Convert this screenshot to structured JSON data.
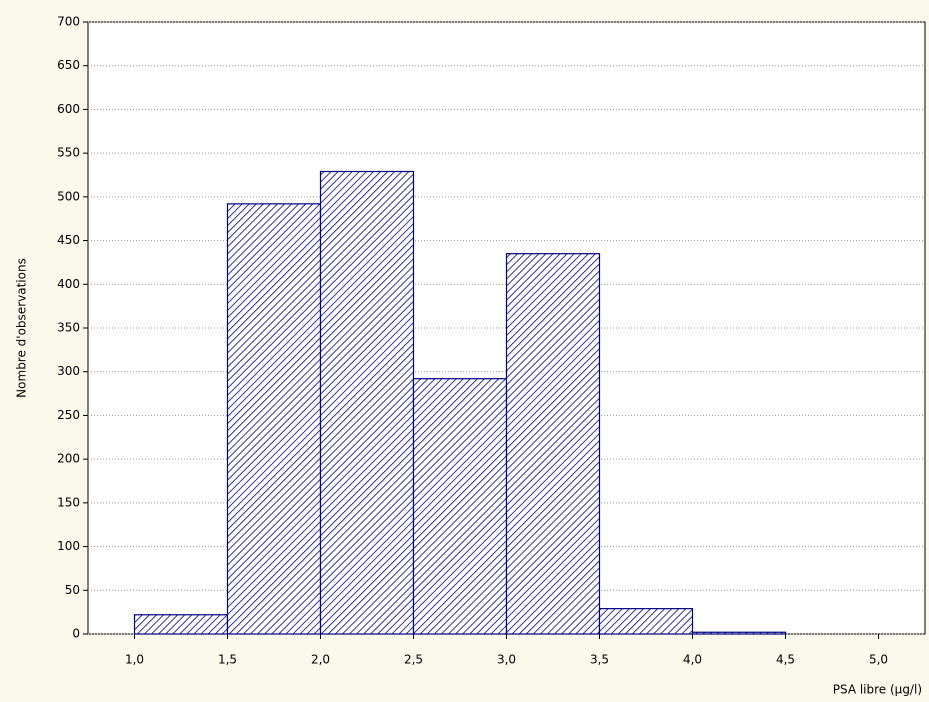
{
  "chart_data": {
    "type": "histogram",
    "xlabel": "PSA libre (µg/l)",
    "ylabel": "Nombre d'observations",
    "bins": [
      1.0,
      1.5,
      2.0,
      2.5,
      3.0,
      3.5,
      4.0,
      4.5
    ],
    "values": [
      22,
      492,
      529,
      292,
      435,
      29,
      2
    ],
    "color": "#000080",
    "xlim": [
      0.75,
      5.25
    ],
    "xticks": [
      {
        "value": 1.0,
        "label": "1,0"
      },
      {
        "value": 1.5,
        "label": "1,5"
      },
      {
        "value": 2.0,
        "label": "2,0"
      },
      {
        "value": 2.5,
        "label": "2,5"
      },
      {
        "value": 3.0,
        "label": "3,0"
      },
      {
        "value": 3.5,
        "label": "3,5"
      },
      {
        "value": 4.0,
        "label": "4,0"
      },
      {
        "value": 4.5,
        "label": "4,5"
      },
      {
        "value": 5.0,
        "label": "5,0"
      }
    ],
    "ylim": [
      0,
      700
    ],
    "yticks": [
      0,
      50,
      100,
      150,
      200,
      250,
      300,
      350,
      400,
      450,
      500,
      550,
      600,
      650,
      700
    ],
    "grid": true
  }
}
